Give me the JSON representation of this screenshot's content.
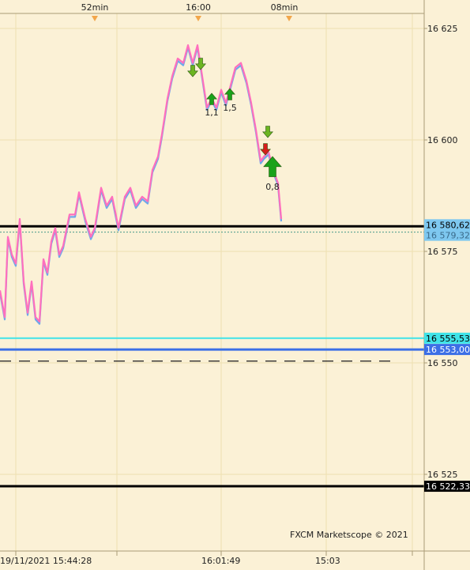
{
  "colors": {
    "background": "#fbf1d6",
    "grid": "#eedfb0",
    "axis": "#a99c76",
    "bid": "#ff6fbd",
    "ask": "#6fa8ea",
    "support": "#000000",
    "cyan_level": "#3fe3e8",
    "blue_level": "#3c6fe6",
    "dashed_level": "#1a1a1a",
    "up_arrow": "#1aa21a",
    "down_arrow": "#d61c1c",
    "time_marker": "#f2a64b"
  },
  "top_axis": {
    "labels": [
      "52min",
      "16:00",
      "08min"
    ]
  },
  "bottom_axis": {
    "labels": [
      "19/11/2021 15:44:28",
      "16:01:49",
      "15:03"
    ]
  },
  "watermark": "FXCM Marketscope © 2021",
  "chart_data": {
    "type": "line",
    "series": [],
    "y_ticks": [
      "16 625",
      "16 600",
      "16 575",
      "16 550",
      "16 525"
    ],
    "y_tick_values": [
      16625,
      16600,
      16575,
      16550,
      16525
    ],
    "ylim": [
      16510,
      16630
    ],
    "price_tags": [
      {
        "text": "16 580,62",
        "value": 16580.62,
        "style": "current"
      },
      {
        "text": "16 579,32",
        "value": 16579.32,
        "style": "current2"
      },
      {
        "text": "16 555,53",
        "value": 16555.53,
        "style": "cyan"
      },
      {
        "text": "16 553,00",
        "value": 16553.0,
        "style": "blue"
      },
      {
        "text": "16 522,33",
        "value": 16522.33,
        "style": "black"
      }
    ],
    "horizontal_lines": [
      {
        "value": 16580.62,
        "style": "support"
      },
      {
        "value": 16579.32,
        "style": "dotted"
      },
      {
        "value": 16555.53,
        "style": "cyan"
      },
      {
        "value": 16553.0,
        "style": "blue"
      },
      {
        "value": 16550.4,
        "style": "dashed"
      },
      {
        "value": 16522.33,
        "style": "support"
      }
    ],
    "trade_markers": [
      {
        "dir": "down",
        "label": ""
      },
      {
        "dir": "down",
        "label": ""
      },
      {
        "dir": "up",
        "label": "1,1"
      },
      {
        "dir": "up",
        "label": "1,5"
      },
      {
        "dir": "down",
        "label": ""
      },
      {
        "dir": "down",
        "label": ""
      },
      {
        "dir": "up",
        "label": "0,8"
      }
    ]
  }
}
